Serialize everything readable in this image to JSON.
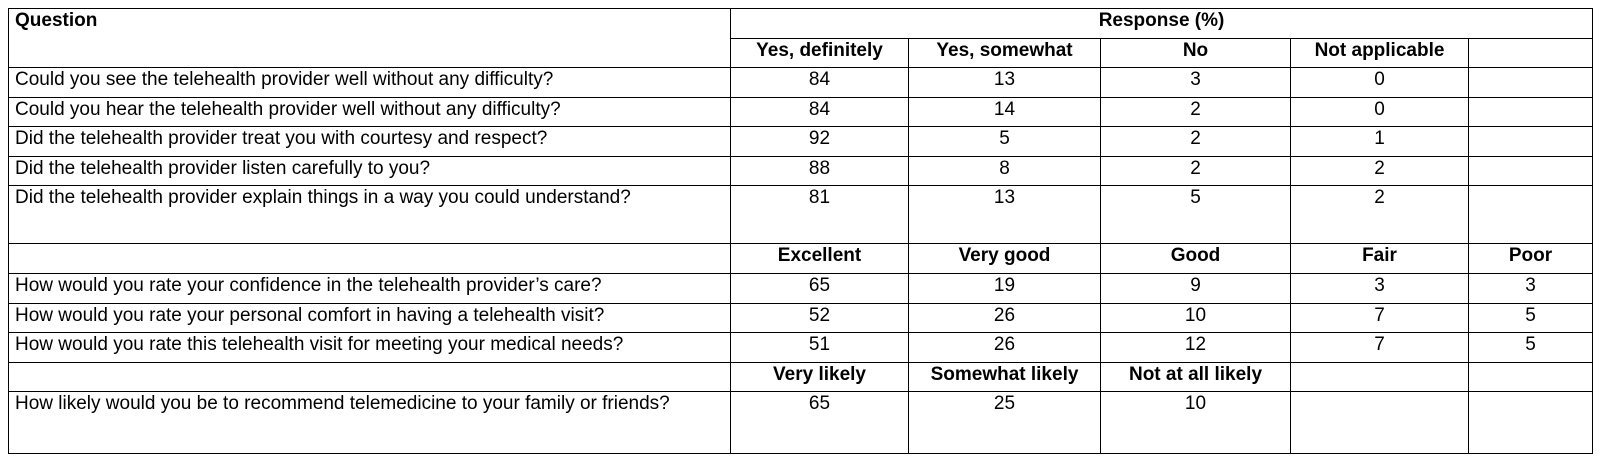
{
  "table": {
    "question_header": "Question",
    "response_header": "Response (%)",
    "sections": [
      {
        "columns": [
          "Yes, definitely",
          "Yes, somewhat",
          "No",
          "Not applicable",
          ""
        ],
        "rows": [
          {
            "question": "Could you see the telehealth provider well without any difficulty?",
            "values": [
              "84",
              "13",
              "3",
              "0",
              ""
            ]
          },
          {
            "question": "Could you hear the telehealth provider well without any difficulty?",
            "values": [
              "84",
              "14",
              "2",
              "0",
              ""
            ]
          },
          {
            "question": "Did the telehealth provider treat you with courtesy and respect?",
            "values": [
              "92",
              "5",
              "2",
              "1",
              ""
            ]
          },
          {
            "question": "Did the telehealth provider listen carefully to you?",
            "values": [
              "88",
              "8",
              "2",
              "2",
              ""
            ]
          },
          {
            "question": "Did the telehealth provider explain things in a way you could understand?",
            "values": [
              "81",
              "13",
              "5",
              "2",
              ""
            ]
          }
        ]
      },
      {
        "columns": [
          "Excellent",
          "Very good",
          "Good",
          "Fair",
          "Poor"
        ],
        "rows": [
          {
            "question": "How would you rate your confidence in the telehealth provider’s care?",
            "values": [
              "65",
              "19",
              "9",
              "3",
              "3"
            ]
          },
          {
            "question": "How would you rate your personal comfort in having a telehealth visit?",
            "values": [
              "52",
              "26",
              "10",
              "7",
              "5"
            ]
          },
          {
            "question": "How would you rate this telehealth visit for meeting your medical needs?",
            "values": [
              "51",
              "26",
              "12",
              "7",
              "5"
            ]
          }
        ]
      },
      {
        "columns": [
          "Very likely",
          "Somewhat likely",
          "Not at all likely",
          "",
          ""
        ],
        "rows": [
          {
            "question": "How likely would you be to recommend telemedicine to your family or friends?",
            "values": [
              "65",
              "25",
              "10",
              "",
              ""
            ]
          }
        ]
      }
    ]
  }
}
